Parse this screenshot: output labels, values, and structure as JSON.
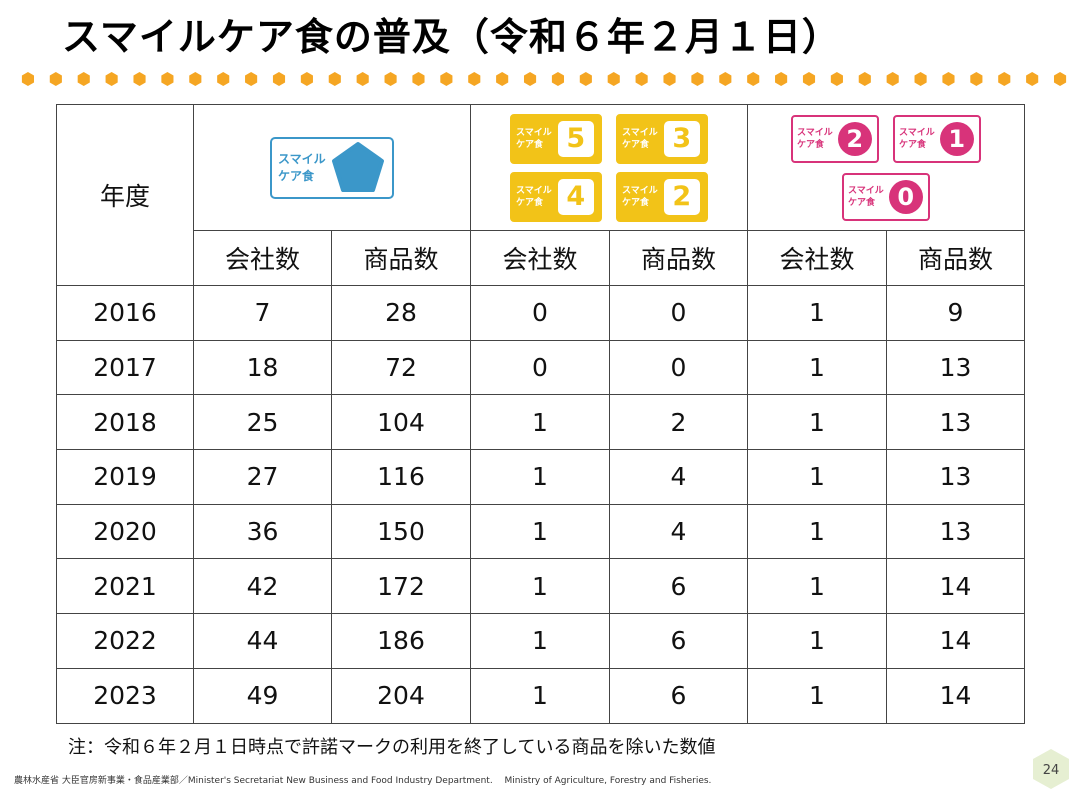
{
  "title": "スマイルケア食の普及（令和６年２月１日）",
  "table": {
    "year_header": "年度",
    "groups": [
      {
        "name": "blue",
        "marks": [
          {
            "text1": "スマイル",
            "text2": "ケア食",
            "number": "",
            "color": "#3b97c9"
          }
        ]
      },
      {
        "name": "yellow",
        "marks": [
          {
            "text1": "スマイル",
            "text2": "ケア食",
            "number": "5"
          },
          {
            "text1": "スマイル",
            "text2": "ケア食",
            "number": "3"
          },
          {
            "text1": "スマイル",
            "text2": "ケア食",
            "number": "4"
          },
          {
            "text1": "スマイル",
            "text2": "ケア食",
            "number": "2"
          }
        ],
        "color": "#f2c318"
      },
      {
        "name": "pink",
        "marks": [
          {
            "text1": "スマイル",
            "text2": "ケア食",
            "number": "2"
          },
          {
            "text1": "スマイル",
            "text2": "ケア食",
            "number": "1"
          },
          {
            "text1": "スマイル",
            "text2": "ケア食",
            "number": "0"
          }
        ],
        "color": "#d8337a"
      }
    ],
    "sub_headers": [
      "会社数",
      "商品数",
      "会社数",
      "商品数",
      "会社数",
      "商品数"
    ],
    "rows": [
      [
        "2016",
        "7",
        "28",
        "0",
        "0",
        "1",
        "9"
      ],
      [
        "2017",
        "18",
        "72",
        "0",
        "0",
        "1",
        "13"
      ],
      [
        "2018",
        "25",
        "104",
        "1",
        "2",
        "1",
        "13"
      ],
      [
        "2019",
        "27",
        "116",
        "1",
        "4",
        "1",
        "13"
      ],
      [
        "2020",
        "36",
        "150",
        "1",
        "4",
        "1",
        "13"
      ],
      [
        "2021",
        "42",
        "172",
        "1",
        "6",
        "1",
        "14"
      ],
      [
        "2022",
        "44",
        "186",
        "1",
        "6",
        "1",
        "14"
      ],
      [
        "2023",
        "49",
        "204",
        "1",
        "6",
        "1",
        "14"
      ]
    ]
  },
  "note": "注：令和６年２月１日時点で許諾マークの利用を終了している商品を除いた数値",
  "footer": "農林水産省 大臣官房新事業・食品産業部／Minister's Secretariat New Business and Food Industry Department.　 Ministry of Agriculture, Forestry and Fisheries.",
  "page_number": "24",
  "colors": {
    "dot": "#f5a623",
    "blue": "#3b97c9",
    "yellow": "#f2c318",
    "pink": "#d8337a",
    "page_hex": "#e6efd2"
  }
}
